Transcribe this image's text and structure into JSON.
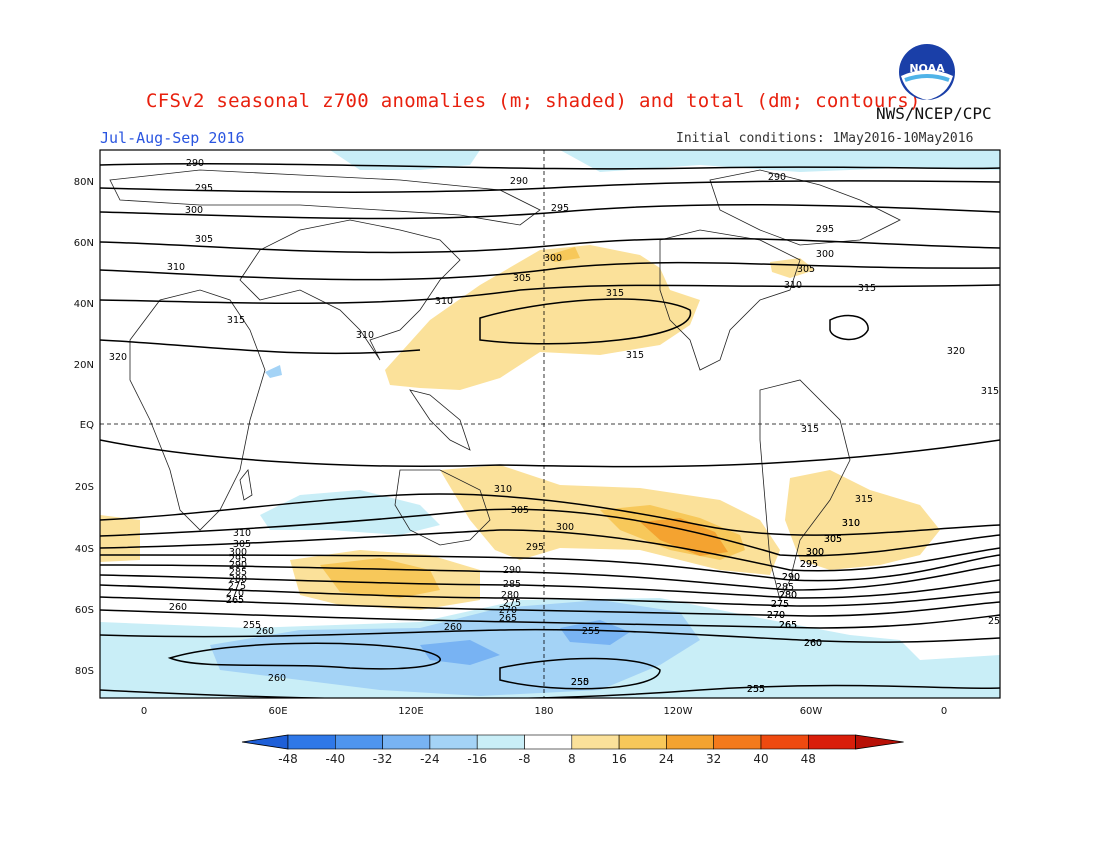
{
  "title": "CFSv2 seasonal z700 anomalies (m; shaded) and total (dm; contours)",
  "org": "NWS/NCEP/CPC",
  "season": "Jul-Aug-Sep 2016",
  "initial_conditions": "Initial conditions: 1May2016-10May2016",
  "logo_text": "NOAA",
  "lat_labels": [
    "80N",
    "60N",
    "40N",
    "20N",
    "EQ",
    "20S",
    "40S",
    "60S",
    "80S"
  ],
  "lon_labels": [
    "0",
    "60E",
    "120E",
    "180",
    "120W",
    "60W",
    "0"
  ],
  "colorbar": {
    "ticks": [
      "-48",
      "-40",
      "-32",
      "-24",
      "-16",
      "-8",
      "8",
      "16",
      "24",
      "32",
      "40",
      "48"
    ],
    "colors": [
      "#1e5fd8",
      "#2f78e8",
      "#4f95ee",
      "#78b3f3",
      "#a4d3f6",
      "#c9eef7",
      "#ffffff",
      "#fbe19a",
      "#f7c85a",
      "#f4a330",
      "#f47a1c",
      "#ef4a10",
      "#d91e0a",
      "#b81006"
    ]
  },
  "contour_labels": [
    {
      "id": "c290a",
      "t": "290"
    },
    {
      "id": "c295a",
      "t": "295"
    },
    {
      "id": "c300a",
      "t": "300"
    },
    {
      "id": "c305a",
      "t": "305"
    },
    {
      "id": "c310a",
      "t": "310"
    },
    {
      "id": "c315a",
      "t": "315"
    },
    {
      "id": "c320a",
      "t": "320"
    },
    {
      "id": "c290b",
      "t": "290"
    },
    {
      "id": "c295b",
      "t": "295"
    },
    {
      "id": "c300b",
      "t": "300"
    },
    {
      "id": "c305b",
      "t": "305"
    },
    {
      "id": "c310b",
      "t": "310"
    },
    {
      "id": "c315b",
      "t": "315"
    },
    {
      "id": "c310c",
      "t": "310"
    },
    {
      "id": "c290c",
      "t": "290"
    },
    {
      "id": "c295c",
      "t": "295"
    },
    {
      "id": "c300c",
      "t": "300"
    },
    {
      "id": "c305c",
      "t": "305"
    },
    {
      "id": "c310d",
      "t": "310"
    },
    {
      "id": "c315c",
      "t": "315"
    },
    {
      "id": "c320b",
      "t": "320"
    },
    {
      "id": "c315d",
      "t": "315"
    },
    {
      "id": "c315e",
      "t": "315"
    },
    {
      "id": "c315f",
      "t": "315"
    },
    {
      "id": "c310e",
      "t": "310"
    },
    {
      "id": "c305d",
      "t": "305"
    },
    {
      "id": "c300d",
      "t": "300"
    },
    {
      "id": "c295d",
      "t": "295"
    },
    {
      "id": "c290d",
      "t": "290"
    },
    {
      "id": "c285d",
      "t": "285"
    },
    {
      "id": "c280d",
      "t": "280"
    },
    {
      "id": "c275d",
      "t": "275"
    },
    {
      "id": "c270d",
      "t": "270"
    },
    {
      "id": "c265d",
      "t": "265"
    },
    {
      "id": "c260d",
      "t": "260"
    },
    {
      "id": "c255d",
      "t": "255"
    },
    {
      "id": "c255e",
      "t": "255"
    },
    {
      "id": "c260e",
      "t": "260"
    },
    {
      "id": "c265e",
      "t": "265"
    },
    {
      "id": "c260f",
      "t": "260"
    },
    {
      "id": "c310f",
      "t": "310"
    },
    {
      "id": "c305e",
      "t": "305"
    },
    {
      "id": "c300e",
      "t": "300"
    },
    {
      "id": "c295e",
      "t": "295"
    },
    {
      "id": "c290e",
      "t": "290"
    },
    {
      "id": "c285e",
      "t": "285"
    },
    {
      "id": "c280e",
      "t": "280"
    },
    {
      "id": "c275e",
      "t": "275"
    },
    {
      "id": "c270e",
      "t": "270"
    },
    {
      "id": "c265e",
      "t": "265"
    },
    {
      "id": "c260g",
      "t": "260"
    },
    {
      "id": "c255f",
      "t": "255"
    },
    {
      "id": "c250",
      "t": "250"
    },
    {
      "id": "c255g",
      "t": "255"
    },
    {
      "id": "c310g",
      "t": "310"
    },
    {
      "id": "c305f",
      "t": "305"
    },
    {
      "id": "c300f",
      "t": "300"
    },
    {
      "id": "c295f",
      "t": "295"
    },
    {
      "id": "c290f",
      "t": "290"
    },
    {
      "id": "c285f",
      "t": "285"
    },
    {
      "id": "c280f",
      "t": "280"
    },
    {
      "id": "c275f",
      "t": "275"
    },
    {
      "id": "c270f",
      "t": "270"
    },
    {
      "id": "c265f",
      "t": "265"
    },
    {
      "id": "c260h",
      "t": "260"
    },
    {
      "id": "c315g",
      "t": "315"
    },
    {
      "id": "c310h",
      "t": "310"
    },
    {
      "id": "c305g",
      "t": "305"
    },
    {
      "id": "c300g",
      "t": "300"
    },
    {
      "id": "c295g",
      "t": "295"
    },
    {
      "id": "c290g",
      "t": "290"
    },
    {
      "id": "c265g",
      "t": "265"
    },
    {
      "id": "c280g",
      "t": "280"
    },
    {
      "id": "c275g",
      "t": "275"
    },
    {
      "id": "c270g",
      "t": "270"
    },
    {
      "id": "c265h",
      "t": "265"
    },
    {
      "id": "c260i",
      "t": "260"
    },
    {
      "id": "c255h",
      "t": "255"
    },
    {
      "id": "c25",
      "t": "25"
    }
  ]
}
